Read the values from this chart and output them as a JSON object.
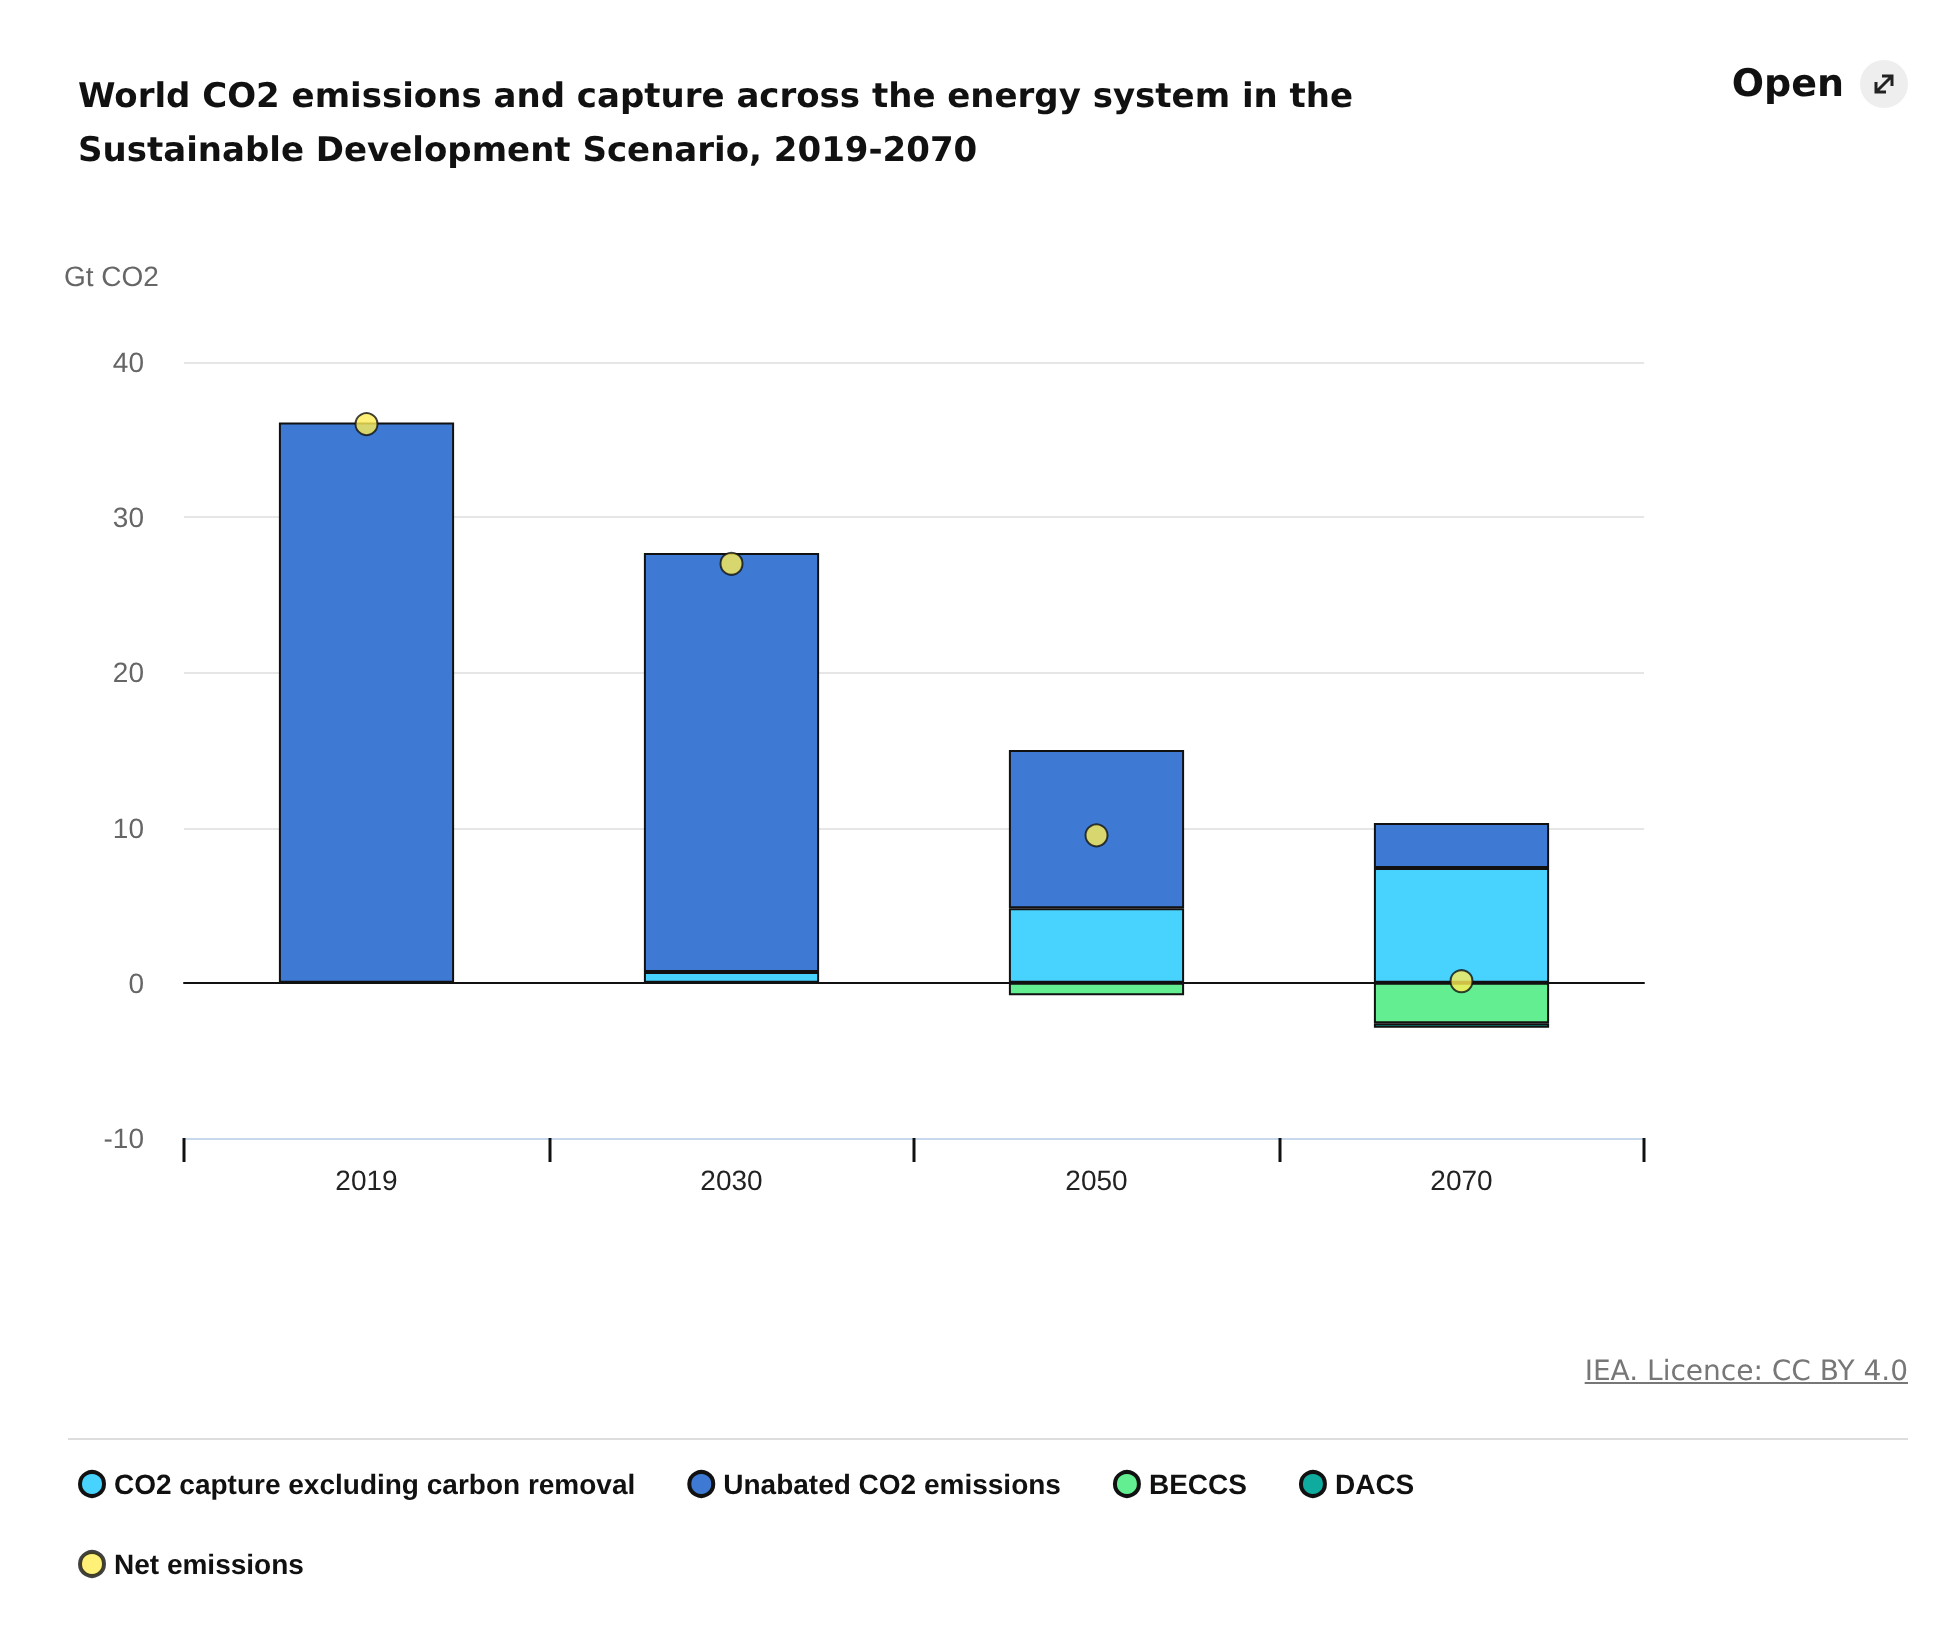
{
  "chart_data": {
    "type": "bar",
    "title": "World CO2 emissions and capture across the energy system in the Sustainable Development Scenario, 2019-2070",
    "ylabel": "Gt CO2",
    "categories": [
      "2019",
      "2030",
      "2050",
      "2070"
    ],
    "stacked": true,
    "series": [
      {
        "name": "CO2 capture excluding carbon removal",
        "color": "#48d3ff",
        "values": [
          null,
          0.7,
          4.8,
          7.4
        ]
      },
      {
        "name": "Unabated CO2 emissions",
        "color": "#3e7ad3",
        "values": [
          36.1,
          27.0,
          10.2,
          2.9
        ]
      },
      {
        "name": "BECCS",
        "color": "#64ee92",
        "values": [
          null,
          null,
          -0.8,
          -2.6
        ]
      },
      {
        "name": "DACS",
        "color": "#0fab9e",
        "values": [
          null,
          null,
          null,
          -0.3
        ]
      },
      {
        "name": "Net emissions",
        "type": "scatter",
        "color": "#ffee55",
        "values": [
          36.0,
          27.0,
          9.5,
          0.1
        ]
      }
    ],
    "ylim": [
      -10,
      40
    ],
    "yticks": [
      -10,
      0,
      10,
      20,
      30,
      40
    ],
    "grid": "y",
    "legend": "bottom",
    "marker": "circle",
    "annotations": [
      "IEA. Licence: CC BY 4.0",
      "Open"
    ]
  }
}
